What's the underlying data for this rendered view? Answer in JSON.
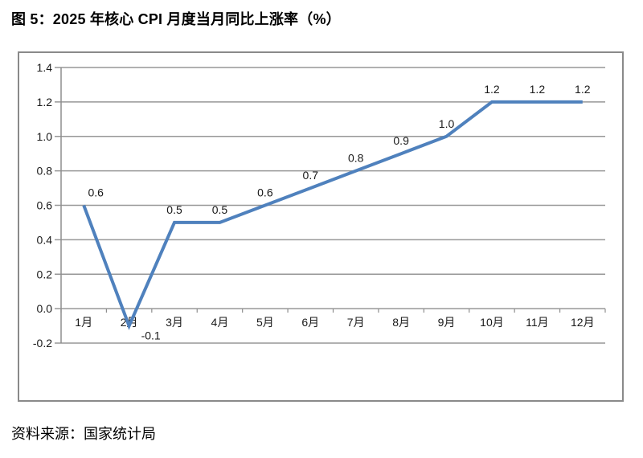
{
  "figure_title": "图 5：2025 年核心 CPI 月度当月同比上涨率（%）",
  "source_note": "资料来源：国家统计局",
  "chart_data": {
    "type": "line",
    "title": "图 5：2025 年核心 CPI 月度当月同比上涨率（%）",
    "categories": [
      "1月",
      "2月",
      "3月",
      "4月",
      "5月",
      "6月",
      "7月",
      "8月",
      "9月",
      "10月",
      "11月",
      "12月"
    ],
    "values": [
      0.6,
      -0.1,
      0.5,
      0.5,
      0.6,
      0.7,
      0.8,
      0.9,
      1.0,
      1.2,
      1.2,
      1.2
    ],
    "data_labels": [
      "0.6",
      "-0.1",
      "0.5",
      "0.5",
      "0.6",
      "0.7",
      "0.8",
      "0.9",
      "1.0",
      "1.2",
      "1.2",
      "1.2"
    ],
    "xlabel": "",
    "ylabel": "",
    "ylim": [
      -0.2,
      1.4
    ],
    "ytick_labels": [
      "1.4",
      "1.2",
      "1.0",
      "0.8",
      "0.6",
      "0.4",
      "0.2",
      "0.0",
      "-0.2"
    ],
    "grid": true,
    "legend_position": "none",
    "line_color": "#4F81BD",
    "grid_color": "#979797",
    "axis_color": "#8e8e8e",
    "text_color": "#1a1a1a",
    "frame_border_color": "#8a8a8a",
    "source": "资料来源：国家统计局"
  }
}
